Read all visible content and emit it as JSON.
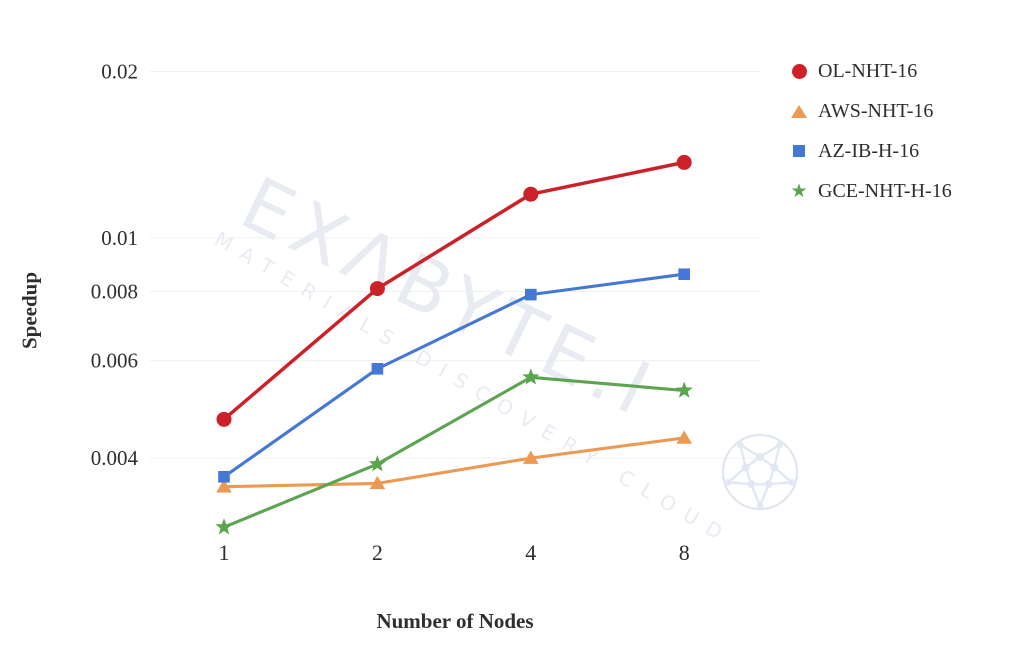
{
  "chart_data": {
    "type": "line",
    "xlabel": "Number of Nodes",
    "ylabel": "Speedup",
    "x_scale": "log2",
    "y_scale": "log10",
    "grid": "horizontal",
    "legend_position": "right",
    "x": [
      1,
      2,
      4,
      8
    ],
    "x_tick_labels": [
      "1",
      "2",
      "4",
      "8"
    ],
    "y_ticks": [
      0.004,
      0.006,
      0.008,
      0.01,
      0.02
    ],
    "y_tick_labels": [
      "0.004",
      "0.006",
      "0.008",
      "0.01",
      "0.02"
    ],
    "ylim": [
      0.0028,
      0.022
    ],
    "series": [
      {
        "name": "OL-NHT-16",
        "color": "#cc2128",
        "marker": "circle",
        "values": [
          0.0047,
          0.0081,
          0.012,
          0.0137
        ]
      },
      {
        "name": "AWS-NHT-16",
        "color": "#ec9a53",
        "marker": "triangle",
        "values": [
          0.00355,
          0.0036,
          0.004,
          0.00435
        ]
      },
      {
        "name": "AZ-IB-H-16",
        "color": "#4478d4",
        "marker": "square",
        "values": [
          0.0037,
          0.0058,
          0.0079,
          0.0086
        ]
      },
      {
        "name": "GCE-NHT-H-16",
        "color": "#5da450",
        "marker": "star",
        "values": [
          0.003,
          0.0039,
          0.0056,
          0.0053
        ]
      }
    ]
  },
  "watermark": {
    "line1": "EXΛBYTE.I",
    "line2": "MATERIALS DISCOVERY CLOUD",
    "text_color": "#e8ecf2",
    "ball_color": "#e2e8f1"
  },
  "style": {
    "text_color": "#2e2e2e",
    "gridline_color": "#f1f1f1",
    "background": "#ffffff"
  }
}
